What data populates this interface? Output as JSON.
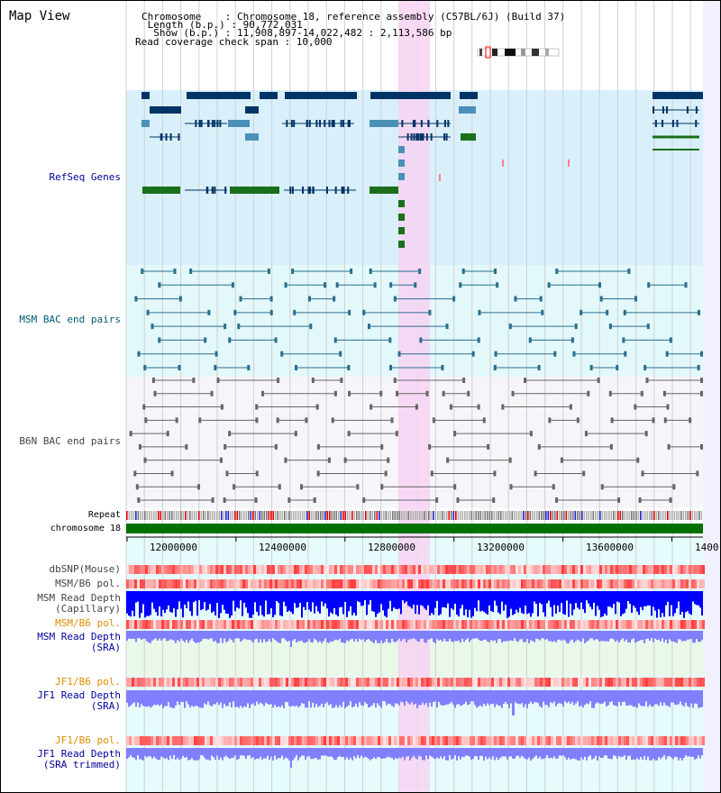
{
  "title": "Map View",
  "info": {
    "chromosome": "Chromosome    : Chromosome 18, reference assembly (C57BL/6J) (Build 37)",
    "length": " Length (b.p.) : 90,772,031",
    "show": "  Show (b.p.) : 11,908,897-14,022,482 : 2,113,586 bp",
    "span": "Read coverage check span : 10,000"
  },
  "tracks": {
    "refseq": "RefSeq Genes",
    "msm_bac": "MSM BAC end pairs",
    "b6n_bac": "B6N BAC end pairs",
    "repeat": "Repeat",
    "chromosome": "chromosome 18",
    "dbsnp": "dbSNP(Mouse)",
    "msm_b6_pol1": "MSM/B6 pol.",
    "msm_depth_cap": "MSM Read Depth\n(Capillary)",
    "msm_b6_pol2": "MSM/B6 pol.",
    "msm_depth_sra": "MSM Read Depth\n(SRA)",
    "jf1_b6_pol1": "JF1/B6 pol.",
    "jf1_depth_sra": "JF1 Read Depth\n(SRA)",
    "jf1_b6_pol2": "JF1/B6 pol.",
    "jf1_depth_trim": "JF1 Read Depth\n(SRA trimmed)"
  },
  "axis": {
    "ticks": [
      "12000000",
      "12400000",
      "12800000",
      "13200000",
      "13600000",
      "1400"
    ]
  },
  "colors": {
    "refseq_bg": "#d9f0fa",
    "msm_bg": "#e3f8fa",
    "b6n_bg": "#f6f6fa",
    "highlight": "#f7d3f3",
    "gene_navy": "#003366",
    "gene_teal": "#4b90b8",
    "gene_green": "#1a6f1a",
    "msm_line": "#2a6e8e",
    "b6n_line": "#666666",
    "label_blue": "#000099",
    "label_teal": "#005a7a",
    "label_gray": "#444444",
    "label_orange": "#e08c00",
    "chrom_green": "#007000",
    "depth_blue": "#0000ff",
    "depth_light": "#8080ff",
    "pol_red": "#ff3030"
  }
}
